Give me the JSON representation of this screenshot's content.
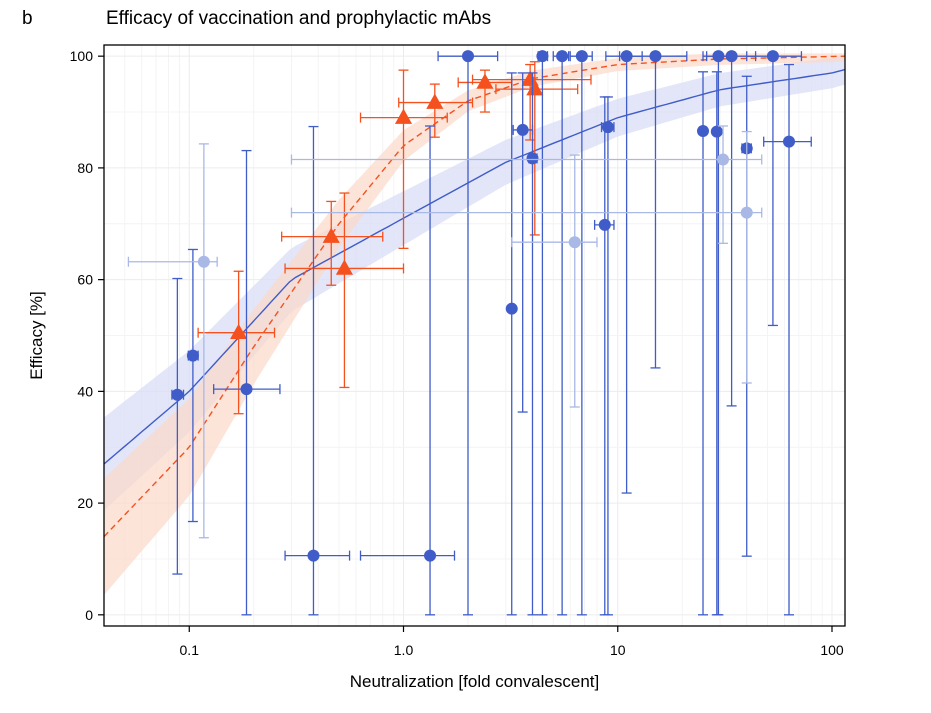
{
  "panel_letter": "b",
  "chart_data": {
    "type": "scatter",
    "title": "Efficacy of vaccination and prophylactic mAbs",
    "xlabel": "Neutralization [fold convalescent]",
    "ylabel": "Efficacy [%]",
    "x_scale": "log",
    "xlim": [
      0.04,
      115
    ],
    "ylim": [
      -2,
      102
    ],
    "x_ticks": [
      0.1,
      1.0,
      10,
      100
    ],
    "x_tick_labels": [
      "0.1",
      "1.0",
      "10",
      "100"
    ],
    "y_ticks": [
      0,
      20,
      40,
      60,
      80,
      100
    ],
    "y_tick_labels": [
      "0",
      "20",
      "40",
      "60",
      "80",
      "100"
    ],
    "grid": true,
    "legend": "none",
    "colors": {
      "blue": "#3f5cc8",
      "blue_faded": "#a9b9e6",
      "blue_band": "#d9def5",
      "orange": "#f5511e",
      "orange_band": "#fcd9c9",
      "grid": "#ececec"
    },
    "series": [
      {
        "marker": "triangle",
        "color": "#f5511e",
        "points": [
          {
            "x": 0.17,
            "y": 50.5,
            "xlo": 0.11,
            "xhi": 0.25,
            "ylo": 36,
            "yhi": 61.5
          },
          {
            "x": 0.46,
            "y": 67.7,
            "xlo": 0.27,
            "xhi": 0.8,
            "ylo": 59,
            "yhi": 74
          },
          {
            "x": 0.53,
            "y": 62,
            "xlo": 0.28,
            "xhi": 1.0,
            "ylo": 40.7,
            "yhi": 75.5
          },
          {
            "x": 1.0,
            "y": 89,
            "xlo": 0.63,
            "xhi": 1.6,
            "ylo": 65.6,
            "yhi": 97.5
          },
          {
            "x": 1.4,
            "y": 91.7,
            "xlo": 0.95,
            "xhi": 2.1,
            "ylo": 85.5,
            "yhi": 95
          },
          {
            "x": 2.4,
            "y": 95.3,
            "xlo": 1.8,
            "xhi": 3.2,
            "ylo": 90,
            "yhi": 97.5
          },
          {
            "x": 3.9,
            "y": 95.8,
            "xlo": 2.1,
            "xhi": 7.5,
            "ylo": 85,
            "yhi": 98.5
          },
          {
            "x": 4.1,
            "y": 94.1,
            "xlo": 2.7,
            "xhi": 6.5,
            "ylo": 68,
            "yhi": 99
          }
        ]
      },
      {
        "marker": "circle",
        "color": "#3f5cc8",
        "points": [
          {
            "x": 0.088,
            "y": 39.4,
            "xlo": 0.083,
            "xhi": 0.094,
            "ylo": 7.3,
            "yhi": 60.2
          },
          {
            "x": 0.104,
            "y": 46.4,
            "xlo": 0.099,
            "xhi": 0.11,
            "ylo": 16.7,
            "yhi": 65.4
          },
          {
            "x": 0.185,
            "y": 40.4,
            "xlo": 0.13,
            "xhi": 0.265,
            "ylo": 0,
            "yhi": 83.1
          },
          {
            "x": 0.38,
            "y": 10.6,
            "xlo": 0.28,
            "xhi": 0.56,
            "ylo": 0,
            "yhi": 87.4
          },
          {
            "x": 1.33,
            "y": 10.6,
            "xlo": 0.63,
            "xhi": 1.73,
            "ylo": 0,
            "yhi": 87.5
          },
          {
            "x": 2.0,
            "y": 100,
            "xlo": 1.45,
            "xhi": 2.75,
            "ylo": 0,
            "yhi": 100
          },
          {
            "x": 3.2,
            "y": 54.8,
            "xlo": 3.2,
            "xhi": 3.2,
            "ylo": 0,
            "yhi": 97
          },
          {
            "x": 3.6,
            "y": 86.8,
            "xlo": 3.25,
            "xhi": 4.0,
            "ylo": 36.3,
            "yhi": 97
          },
          {
            "x": 4.0,
            "y": 81.7,
            "xlo": 3.85,
            "xhi": 4.2,
            "ylo": 0,
            "yhi": 97
          },
          {
            "x": 4.45,
            "y": 100,
            "xlo": 4.25,
            "xhi": 4.7,
            "ylo": 0,
            "yhi": 100
          },
          {
            "x": 5.5,
            "y": 100,
            "xlo": 5.0,
            "xhi": 5.9,
            "ylo": 0,
            "yhi": 100
          },
          {
            "x": 6.8,
            "y": 100,
            "xlo": 6.0,
            "xhi": 7.6,
            "ylo": 0,
            "yhi": 100
          },
          {
            "x": 8.7,
            "y": 69.8,
            "xlo": 7.8,
            "xhi": 9.6,
            "ylo": 0,
            "yhi": 92.7
          },
          {
            "x": 9.0,
            "y": 87.3,
            "xlo": 8.4,
            "xhi": 9.6,
            "ylo": 0,
            "yhi": 92.7
          },
          {
            "x": 11.0,
            "y": 100,
            "xlo": 8.8,
            "xhi": 13.0,
            "ylo": 21.8,
            "yhi": 100
          },
          {
            "x": 15.0,
            "y": 100,
            "xlo": 10.2,
            "xhi": 21.0,
            "ylo": 44.2,
            "yhi": 100
          },
          {
            "x": 25.0,
            "y": 86.6,
            "xlo": 24.5,
            "xhi": 25.5,
            "ylo": 0,
            "yhi": 97.2
          },
          {
            "x": 29.0,
            "y": 86.5,
            "xlo": 28.5,
            "xhi": 29.5,
            "ylo": 0,
            "yhi": 97.2
          },
          {
            "x": 29.5,
            "y": 100,
            "xlo": 25.0,
            "xhi": 35.0,
            "ylo": 0,
            "yhi": 100
          },
          {
            "x": 34.0,
            "y": 100,
            "xlo": 26.0,
            "xhi": 44.0,
            "ylo": 37.4,
            "yhi": 100
          },
          {
            "x": 40.0,
            "y": 83.5,
            "xlo": 38.0,
            "xhi": 42.0,
            "ylo": 10.5,
            "yhi": 96.4
          },
          {
            "x": 53.0,
            "y": 100,
            "xlo": 40.0,
            "xhi": 72.0,
            "ylo": 51.8,
            "yhi": 100
          },
          {
            "x": 63.0,
            "y": 84.7,
            "xlo": 48.0,
            "xhi": 80.0,
            "ylo": 0,
            "yhi": 98.5
          }
        ]
      },
      {
        "marker": "circle",
        "color": "#a9b9e6",
        "points": [
          {
            "x": 0.117,
            "y": 63.2,
            "xlo": 0.052,
            "xhi": 0.135,
            "ylo": 13.8,
            "yhi": 84.3
          },
          {
            "x": 6.3,
            "y": 66.7,
            "xlo": 3.2,
            "xhi": 8.0,
            "ylo": 37.2,
            "yhi": 82.3
          },
          {
            "x": 31.0,
            "y": 81.5,
            "xlo": 0.3,
            "xhi": 47.0,
            "ylo": 66.5,
            "yhi": 87.5
          },
          {
            "x": 40.0,
            "y": 72.0,
            "xlo": 0.3,
            "xhi": 47.0,
            "ylo": 41.5,
            "yhi": 86.5
          }
        ]
      }
    ],
    "fits": [
      {
        "color": "#3f5cc8",
        "style": "solid",
        "x": [
          0.04,
          0.1,
          0.3,
          1,
          3,
          10,
          30,
          100,
          115
        ],
        "y": [
          27,
          40,
          60,
          71,
          81,
          89,
          94,
          97,
          97.6
        ]
      },
      {
        "color": "#f5511e",
        "style": "dashed",
        "x": [
          0.04,
          0.1,
          0.2,
          0.5,
          1,
          2,
          4,
          10,
          30,
          115
        ],
        "y": [
          14,
          30,
          48,
          70,
          84,
          92,
          96,
          98.5,
          99.5,
          100
        ]
      }
    ]
  }
}
